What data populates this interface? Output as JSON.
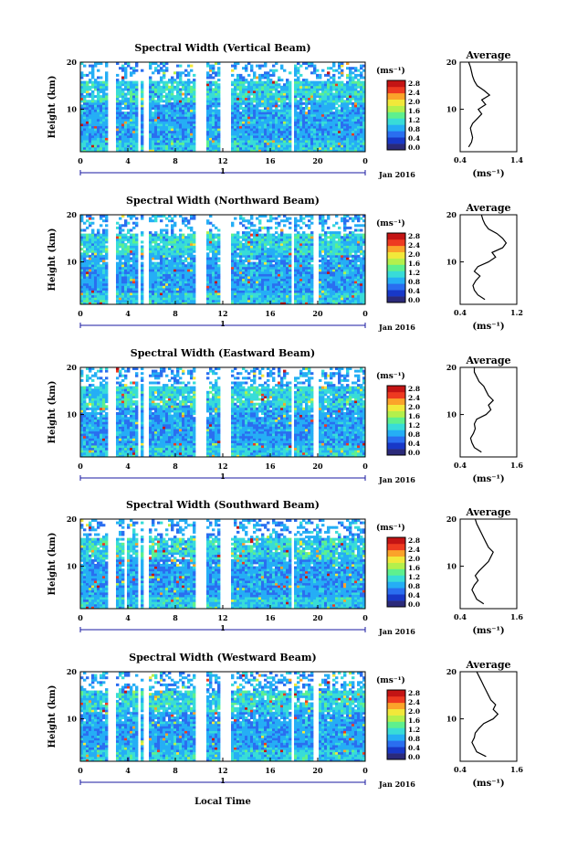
{
  "figure": {
    "xaxis_label": "Local Time",
    "date_label": "Jan 2016",
    "date_axis_tick": "1"
  },
  "colorbar": {
    "unit": "(ms⁻¹)",
    "ticks": [
      "0.0",
      "0.4",
      "0.8",
      "1.2",
      "1.6",
      "2.0",
      "2.4",
      "2.8"
    ],
    "colors": [
      "#2b2a7a",
      "#1838c8",
      "#2a6ef0",
      "#25aef5",
      "#38dcd8",
      "#5ef08e",
      "#b4f04c",
      "#f2e83a",
      "#fba32a",
      "#ee3a20",
      "#c41414"
    ]
  },
  "chart_data": [
    {
      "type": "heatmap",
      "title": "Spectral Width (Vertical Beam)",
      "ylabel": "Height (km)",
      "xlabel": "Local Time",
      "x_ticks": [
        "0",
        "4",
        "8",
        "12",
        "16",
        "20",
        "0"
      ],
      "y_ticks": [
        "20",
        "10"
      ],
      "xlim": [
        0,
        24
      ],
      "ylim": [
        1,
        20
      ],
      "colorbar_range": [
        0.0,
        2.8
      ],
      "data_gaps_hours": [
        [
          2.4,
          3.0
        ],
        [
          4.9,
          5.0
        ],
        [
          5.4,
          5.8
        ],
        [
          9.6,
          10.5
        ],
        [
          11.7,
          12.6
        ],
        [
          17.8,
          18.0
        ]
      ],
      "average_profile": {
        "title": "Average",
        "xlabel": "(ms⁻¹)",
        "xlim": [
          0.4,
          1.4
        ],
        "x_ticks": [
          "0.4",
          "1.4"
        ],
        "y_ticks": [
          "20",
          "10"
        ],
        "height_km": [
          2,
          3,
          4,
          5,
          6,
          7,
          8,
          9,
          10,
          11,
          12,
          13,
          14,
          15,
          16,
          17,
          18,
          19,
          20
        ],
        "width": [
          0.55,
          0.6,
          0.62,
          0.6,
          0.58,
          0.62,
          0.7,
          0.78,
          0.72,
          0.85,
          0.78,
          0.92,
          0.82,
          0.7,
          0.65,
          0.62,
          0.6,
          0.58,
          0.55
        ]
      }
    },
    {
      "type": "heatmap",
      "title": "Spectral Width (Northward Beam)",
      "ylabel": "Height (km)",
      "xlabel": "Local Time",
      "x_ticks": [
        "0",
        "4",
        "8",
        "12",
        "16",
        "20",
        "0"
      ],
      "y_ticks": [
        "20",
        "10"
      ],
      "xlim": [
        0,
        24
      ],
      "ylim": [
        1,
        20
      ],
      "colorbar_range": [
        0.0,
        2.8
      ],
      "data_gaps_hours": [
        [
          2.4,
          3.0
        ],
        [
          4.9,
          5.0
        ],
        [
          5.4,
          5.8
        ],
        [
          9.6,
          10.5
        ],
        [
          11.7,
          12.6
        ],
        [
          17.8,
          18.0
        ],
        [
          19.6,
          20.0
        ]
      ],
      "average_profile": {
        "title": "Average",
        "xlabel": "(ms⁻¹)",
        "xlim": [
          0.4,
          1.2
        ],
        "x_ticks": [
          "0.4",
          "1.2"
        ],
        "y_ticks": [
          "20",
          "10"
        ],
        "height_km": [
          2,
          3,
          4,
          5,
          6,
          7,
          8,
          9,
          10,
          11,
          12,
          13,
          14,
          15,
          16,
          17,
          18,
          19,
          20
        ],
        "width": [
          0.75,
          0.65,
          0.6,
          0.58,
          0.62,
          0.68,
          0.6,
          0.65,
          0.8,
          0.9,
          0.85,
          1.0,
          1.05,
          1.0,
          0.92,
          0.8,
          0.75,
          0.72,
          0.7
        ]
      }
    },
    {
      "type": "heatmap",
      "title": "Spectral Width (Eastward Beam)",
      "ylabel": "Height (km)",
      "xlabel": "Local Time",
      "x_ticks": [
        "0",
        "4",
        "8",
        "12",
        "16",
        "20",
        "0"
      ],
      "y_ticks": [
        "20",
        "10"
      ],
      "xlim": [
        0,
        24
      ],
      "ylim": [
        1,
        20
      ],
      "colorbar_range": [
        0.0,
        2.8
      ],
      "data_gaps_hours": [
        [
          2.4,
          3.0
        ],
        [
          4.9,
          5.0
        ],
        [
          5.4,
          5.8
        ],
        [
          9.6,
          10.5
        ],
        [
          11.7,
          12.6
        ],
        [
          17.8,
          18.0
        ],
        [
          19.6,
          20.0
        ]
      ],
      "average_profile": {
        "title": "Average",
        "xlabel": "(ms⁻¹)",
        "xlim": [
          0.4,
          1.6
        ],
        "x_ticks": [
          "0.4",
          "1.6"
        ],
        "y_ticks": [
          "20",
          "10"
        ],
        "height_km": [
          2,
          3,
          4,
          5,
          6,
          7,
          8,
          9,
          10,
          11,
          12,
          13,
          14,
          15,
          16,
          17,
          18,
          19,
          20
        ],
        "width": [
          0.85,
          0.7,
          0.65,
          0.62,
          0.68,
          0.72,
          0.7,
          0.75,
          0.95,
          1.05,
          1.0,
          1.1,
          1.0,
          0.95,
          0.9,
          0.8,
          0.75,
          0.7,
          0.7
        ]
      }
    },
    {
      "type": "heatmap",
      "title": "Spectral Width (Southward Beam)",
      "ylabel": "Height (km)",
      "xlabel": "Local Time",
      "x_ticks": [
        "0",
        "4",
        "8",
        "12",
        "16",
        "20",
        "0"
      ],
      "y_ticks": [
        "20",
        "10"
      ],
      "xlim": [
        0,
        24
      ],
      "ylim": [
        1,
        20
      ],
      "colorbar_range": [
        0.0,
        2.8
      ],
      "data_gaps_hours": [
        [
          2.4,
          3.0
        ],
        [
          3.6,
          3.9
        ],
        [
          4.9,
          5.0
        ],
        [
          5.4,
          5.8
        ],
        [
          9.6,
          10.5
        ],
        [
          11.7,
          12.6
        ],
        [
          17.8,
          18.0
        ]
      ],
      "average_profile": {
        "title": "Average",
        "xlabel": "(ms⁻¹)",
        "xlim": [
          0.4,
          1.6
        ],
        "x_ticks": [
          "0.4",
          "1.6"
        ],
        "y_ticks": [
          "20",
          "10"
        ],
        "height_km": [
          2,
          3,
          4,
          5,
          6,
          7,
          8,
          9,
          10,
          11,
          12,
          13,
          14,
          15,
          16,
          17,
          18,
          19,
          20
        ],
        "width": [
          0.9,
          0.75,
          0.7,
          0.65,
          0.7,
          0.78,
          0.72,
          0.8,
          0.9,
          1.0,
          1.05,
          1.1,
          1.0,
          0.95,
          0.9,
          0.85,
          0.8,
          0.75,
          0.72
        ]
      }
    },
    {
      "type": "heatmap",
      "title": "Spectral Width (Westward Beam)",
      "ylabel": "Height (km)",
      "xlabel": "Local Time",
      "x_ticks": [
        "0",
        "4",
        "8",
        "12",
        "16",
        "20",
        "0"
      ],
      "y_ticks": [
        "20",
        "10"
      ],
      "xlim": [
        0,
        24
      ],
      "ylim": [
        1,
        20
      ],
      "colorbar_range": [
        0.0,
        2.8
      ],
      "data_gaps_hours": [
        [
          2.4,
          3.0
        ],
        [
          4.9,
          5.0
        ],
        [
          5.4,
          5.8
        ],
        [
          9.6,
          10.5
        ],
        [
          11.7,
          12.6
        ],
        [
          17.8,
          18.0
        ],
        [
          19.6,
          20.0
        ]
      ],
      "average_profile": {
        "title": "Average",
        "xlabel": "(ms⁻¹)",
        "xlim": [
          0.4,
          1.6
        ],
        "x_ticks": [
          "0.4",
          "1.6"
        ],
        "y_ticks": [
          "20",
          "10"
        ],
        "height_km": [
          2,
          3,
          4,
          5,
          6,
          7,
          8,
          9,
          10,
          11,
          12,
          13,
          14,
          15,
          16,
          17,
          18,
          19,
          20
        ],
        "width": [
          0.95,
          0.75,
          0.7,
          0.65,
          0.7,
          0.72,
          0.8,
          0.9,
          1.1,
          1.2,
          1.1,
          1.15,
          1.05,
          1.0,
          0.95,
          0.9,
          0.85,
          0.8,
          0.75
        ]
      }
    }
  ]
}
